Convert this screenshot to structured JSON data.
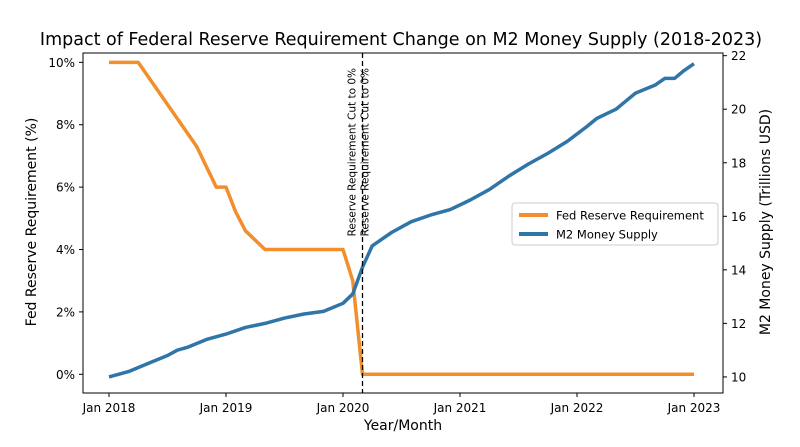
{
  "chart_data": {
    "type": "line",
    "title": "Impact of Federal Reserve Requirement Change on M2 Money Supply (2018-2023)",
    "xlabel": "Year/Month",
    "ylabel_left": "Fed Reserve Requirement (%)",
    "ylabel_right": "M2 Money Supply (Trillions USD)",
    "x_range": [
      "2018-01",
      "2023-01"
    ],
    "x_ticks": [
      {
        "value": "2018-01",
        "label": "Jan 2018"
      },
      {
        "value": "2019-01",
        "label": "Jan 2019"
      },
      {
        "value": "2020-01",
        "label": "Jan 2020"
      },
      {
        "value": "2021-01",
        "label": "Jan 2021"
      },
      {
        "value": "2022-01",
        "label": "Jan 2022"
      },
      {
        "value": "2023-01",
        "label": "Jan 2023"
      }
    ],
    "ylim_left": [
      -0.6,
      10.3
    ],
    "yticks_left": [
      {
        "value": 0,
        "label": "0%"
      },
      {
        "value": 2,
        "label": "2%"
      },
      {
        "value": 4,
        "label": "4%"
      },
      {
        "value": 6,
        "label": "6%"
      },
      {
        "value": 8,
        "label": "8%"
      },
      {
        "value": 10,
        "label": "10%"
      }
    ],
    "ylim_right": [
      9.4,
      22.1
    ],
    "yticks_right": [
      {
        "value": 10,
        "label": "10"
      },
      {
        "value": 12,
        "label": "12"
      },
      {
        "value": 14,
        "label": "14"
      },
      {
        "value": 16,
        "label": "16"
      },
      {
        "value": 18,
        "label": "18"
      },
      {
        "value": 20,
        "label": "20"
      },
      {
        "value": 22,
        "label": "22"
      }
    ],
    "legend_position": "center-right",
    "grid": false,
    "series": [
      {
        "name": "Fed Reserve Requirement",
        "axis": "left",
        "color": "#f28e2b",
        "points": [
          {
            "x": "2018-01",
            "y": 10
          },
          {
            "x": "2018-04",
            "y": 10
          },
          {
            "x": "2018-10",
            "y": 7.3
          },
          {
            "x": "2018-12",
            "y": 6
          },
          {
            "x": "2019-01",
            "y": 6
          },
          {
            "x": "2019-02",
            "y": 5.2
          },
          {
            "x": "2019-03",
            "y": 4.6
          },
          {
            "x": "2019-05",
            "y": 4
          },
          {
            "x": "2020-01",
            "y": 4
          },
          {
            "x": "2020-02",
            "y": 3
          },
          {
            "x": "2020-03",
            "y": 0
          },
          {
            "x": "2023-01",
            "y": 0
          }
        ]
      },
      {
        "name": "M2 Money Supply",
        "axis": "right",
        "color": "#2f75a8",
        "points": [
          {
            "x": "2018-01",
            "y": 10.0
          },
          {
            "x": "2018-03",
            "y": 10.2
          },
          {
            "x": "2018-05",
            "y": 10.5
          },
          {
            "x": "2018-07",
            "y": 10.8
          },
          {
            "x": "2018-08",
            "y": 11.0
          },
          {
            "x": "2018-09",
            "y": 11.1
          },
          {
            "x": "2018-11",
            "y": 11.4
          },
          {
            "x": "2019-01",
            "y": 11.6
          },
          {
            "x": "2019-03",
            "y": 11.85
          },
          {
            "x": "2019-05",
            "y": 12.0
          },
          {
            "x": "2019-07",
            "y": 12.2
          },
          {
            "x": "2019-09",
            "y": 12.35
          },
          {
            "x": "2019-11",
            "y": 12.45
          },
          {
            "x": "2020-01",
            "y": 12.75
          },
          {
            "x": "2020-02",
            "y": 13.1
          },
          {
            "x": "2020-03",
            "y": 14.1
          },
          {
            "x": "2020-04",
            "y": 14.9
          },
          {
            "x": "2020-06",
            "y": 15.4
          },
          {
            "x": "2020-08",
            "y": 15.8
          },
          {
            "x": "2020-10",
            "y": 16.05
          },
          {
            "x": "2020-12",
            "y": 16.25
          },
          {
            "x": "2021-02",
            "y": 16.6
          },
          {
            "x": "2021-04",
            "y": 17.0
          },
          {
            "x": "2021-06",
            "y": 17.5
          },
          {
            "x": "2021-08",
            "y": 17.95
          },
          {
            "x": "2021-10",
            "y": 18.35
          },
          {
            "x": "2021-12",
            "y": 18.8
          },
          {
            "x": "2022-02",
            "y": 19.35
          },
          {
            "x": "2022-03",
            "y": 19.65
          },
          {
            "x": "2022-05",
            "y": 20.0
          },
          {
            "x": "2022-06",
            "y": 20.3
          },
          {
            "x": "2022-07",
            "y": 20.6
          },
          {
            "x": "2022-08",
            "y": 20.75
          },
          {
            "x": "2022-09",
            "y": 20.9
          },
          {
            "x": "2022-10",
            "y": 21.15
          },
          {
            "x": "2022-11",
            "y": 21.15
          },
          {
            "x": "2022-12",
            "y": 21.45
          },
          {
            "x": "2023-01",
            "y": 21.7
          }
        ]
      }
    ],
    "annotations": [
      {
        "type": "vline",
        "x": "2020-03",
        "style": "dashed",
        "color": "#000000",
        "labels": [
          "Reserve Requirement Cut to 0%",
          "Reserve Requirement Cut to 0%"
        ]
      }
    ]
  }
}
